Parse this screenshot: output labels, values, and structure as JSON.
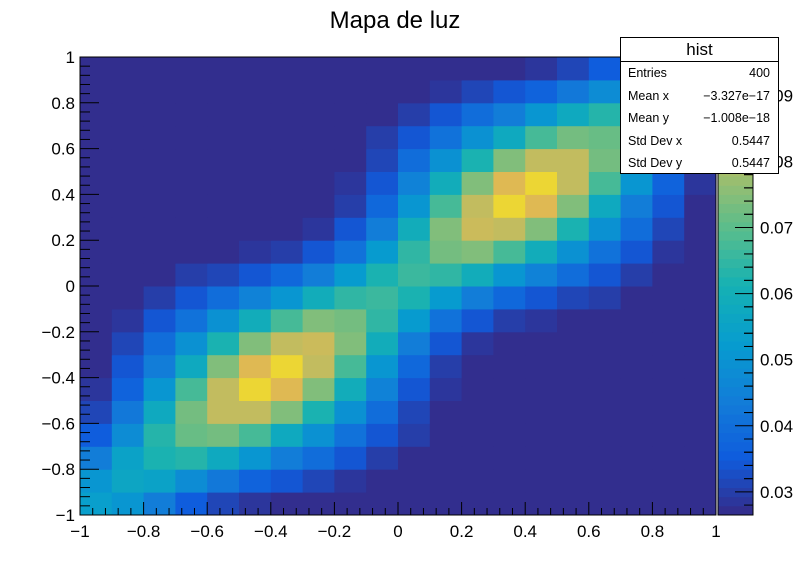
{
  "chart_data": {
    "type": "heatmap",
    "title": "Mapa de luz",
    "xlabel": "",
    "ylabel": "",
    "xlim": [
      -1,
      1
    ],
    "ylim": [
      -1,
      1
    ],
    "zlim": [
      0.0265,
      0.0958
    ],
    "grid": false,
    "nx": 20,
    "ny": 20,
    "x_ticks": [
      -1,
      -0.8,
      -0.6,
      -0.4,
      -0.2,
      0,
      0.2,
      0.4,
      0.6,
      0.8,
      1
    ],
    "y_ticks": [
      -1,
      -0.8,
      -0.6,
      -0.4,
      -0.2,
      0,
      0.2,
      0.4,
      0.6,
      0.8,
      1
    ],
    "x_tick_labels": [
      "−1",
      "−0.8",
      "−0.6",
      "−0.4",
      "−0.2",
      "0",
      "0.2",
      "0.4",
      "0.6",
      "0.8",
      "1"
    ],
    "y_tick_labels": [
      "−1",
      "−0.8",
      "−0.6",
      "−0.4",
      "−0.2",
      "0",
      "0.2",
      "0.4",
      "0.6",
      "0.8",
      "1"
    ],
    "z_ticks": [
      0.03,
      0.04,
      0.05,
      0.06,
      0.07,
      0.08,
      0.09
    ],
    "z_tick_labels": [
      "0.03",
      "0.04",
      "0.05",
      "0.06",
      "0.07",
      "0.08",
      "0.09"
    ],
    "palette": "kBird",
    "values_formula": "content(x,y) = 0.02 + 0.04*exp(-((x-0.4)^2+(y-0.4)^2)/0.18) + 0.04*exp(-((x+0.4)^2+(y+0.4)^2)/0.18) + 0.032*exp(-(x-y)^2/0.08)  (bin centres x,y = -0.95 ... 0.95, step 0.1)"
  },
  "stats_box": {
    "title": "hist",
    "rows": [
      {
        "label": "Entries",
        "value": "400"
      },
      {
        "label": "Mean x",
        "value": "−3.327e−17"
      },
      {
        "label": "Mean y",
        "value": "−1.008e−18"
      },
      {
        "label": "Std Dev x",
        "value": "0.5447"
      },
      {
        "label": "Std Dev y",
        "value": "0.5447"
      }
    ]
  }
}
